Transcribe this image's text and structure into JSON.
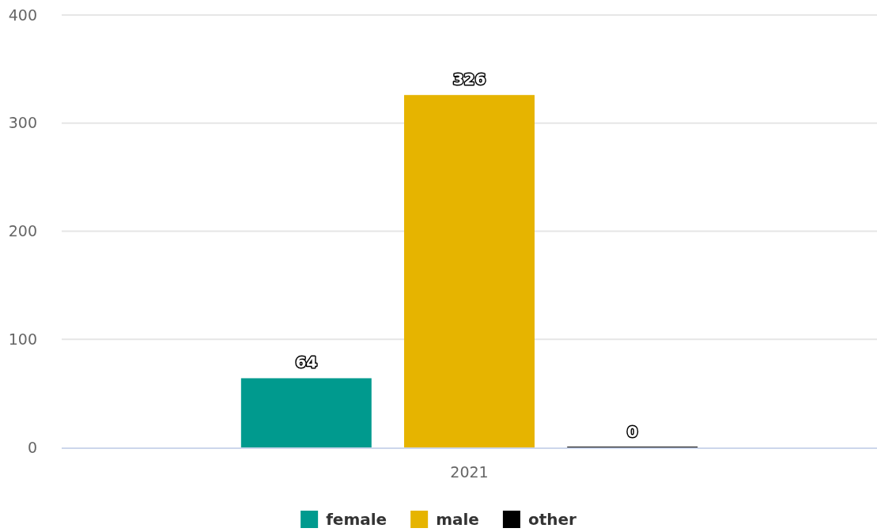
{
  "chart_data": {
    "type": "bar",
    "categories": [
      "2021"
    ],
    "series": [
      {
        "name": "female",
        "color": "#009a8e",
        "values": [
          64
        ]
      },
      {
        "name": "male",
        "color": "#e6b400",
        "values": [
          326
        ]
      },
      {
        "name": "other",
        "color": "#000000",
        "values": [
          0
        ]
      }
    ],
    "ylim": [
      0,
      400
    ],
    "yticks": [
      0,
      100,
      200,
      300,
      400
    ],
    "grid": "y",
    "data_labels": true,
    "legend": "bottom"
  }
}
